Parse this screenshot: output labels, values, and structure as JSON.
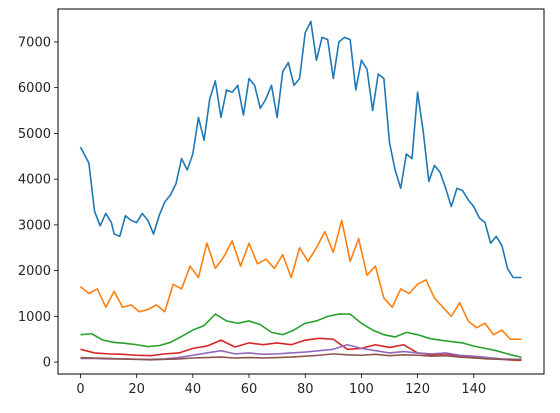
{
  "chart_data": {
    "type": "line",
    "title": "",
    "xlabel": "",
    "ylabel": "",
    "xlim": [
      -8,
      165
    ],
    "ylim": [
      -260,
      7720
    ],
    "grid": false,
    "legend": "none",
    "x_ticks": [
      0,
      20,
      40,
      60,
      80,
      100,
      120,
      140
    ],
    "y_ticks": [
      0,
      1000,
      2000,
      3000,
      4000,
      5000,
      6000,
      7000
    ],
    "series": [
      {
        "color": "#1f77b4",
        "x": [
          0,
          3,
          5,
          7,
          9,
          11,
          12,
          14,
          16,
          18,
          20,
          22,
          24,
          26,
          28,
          30,
          32,
          34,
          36,
          38,
          40,
          42,
          44,
          46,
          48,
          50,
          52,
          54,
          56,
          58,
          60,
          62,
          64,
          66,
          68,
          70,
          72,
          74,
          76,
          78,
          80,
          82,
          84,
          86,
          88,
          90,
          92,
          94,
          96,
          98,
          100,
          102,
          104,
          106,
          108,
          110,
          112,
          114,
          116,
          118,
          120,
          122,
          124,
          126,
          128,
          130,
          132,
          134,
          136,
          138,
          140,
          142,
          144,
          146,
          148,
          150,
          152,
          154,
          156,
          157
        ],
        "y": [
          4700,
          4350,
          3300,
          2980,
          3250,
          3050,
          2800,
          2750,
          3200,
          3100,
          3050,
          3250,
          3100,
          2800,
          3200,
          3500,
          3650,
          3900,
          4450,
          4200,
          4550,
          5350,
          4850,
          5750,
          6150,
          5350,
          5950,
          5900,
          6050,
          5400,
          6200,
          6050,
          5550,
          5750,
          6050,
          5350,
          6350,
          6550,
          6050,
          6200,
          7200,
          7450,
          6600,
          7100,
          7050,
          6200,
          7000,
          7100,
          7050,
          5950,
          6600,
          6400,
          5500,
          6300,
          6200,
          4800,
          4200,
          3800,
          4550,
          4450,
          5900,
          5050,
          3950,
          4300,
          4150,
          3800,
          3400,
          3800,
          3750,
          3550,
          3400,
          3150,
          3050,
          2600,
          2750,
          2550,
          2050,
          1850,
          1850,
          1850
        ]
      },
      {
        "color": "#ff7f0e",
        "x": [
          0,
          3,
          6,
          9,
          12,
          15,
          18,
          21,
          24,
          27,
          30,
          33,
          36,
          39,
          42,
          45,
          48,
          51,
          54,
          57,
          60,
          63,
          66,
          69,
          72,
          75,
          78,
          81,
          84,
          87,
          90,
          93,
          96,
          99,
          102,
          105,
          108,
          111,
          114,
          117,
          120,
          123,
          126,
          129,
          132,
          135,
          138,
          141,
          144,
          147,
          150,
          153,
          156,
          157
        ],
        "y": [
          1650,
          1500,
          1600,
          1200,
          1550,
          1200,
          1250,
          1100,
          1150,
          1250,
          1100,
          1700,
          1600,
          2100,
          1850,
          2600,
          2050,
          2300,
          2650,
          2100,
          2600,
          2150,
          2250,
          2050,
          2350,
          1850,
          2500,
          2200,
          2500,
          2850,
          2400,
          3100,
          2200,
          2700,
          1900,
          2100,
          1400,
          1200,
          1600,
          1500,
          1700,
          1800,
          1400,
          1200,
          1000,
          1300,
          900,
          750,
          850,
          600,
          700,
          500,
          500,
          500
        ]
      },
      {
        "color": "#2ca02c",
        "x": [
          0,
          4,
          8,
          12,
          16,
          20,
          24,
          28,
          32,
          36,
          40,
          44,
          48,
          52,
          56,
          60,
          64,
          68,
          72,
          76,
          80,
          84,
          88,
          92,
          96,
          100,
          104,
          108,
          112,
          116,
          120,
          124,
          128,
          132,
          136,
          140,
          144,
          148,
          152,
          156,
          157
        ],
        "y": [
          600,
          620,
          480,
          430,
          410,
          380,
          340,
          360,
          430,
          560,
          700,
          800,
          1050,
          900,
          850,
          900,
          820,
          650,
          600,
          700,
          850,
          900,
          1000,
          1050,
          1050,
          850,
          700,
          600,
          550,
          650,
          600,
          520,
          480,
          450,
          420,
          350,
          300,
          250,
          180,
          120,
          100
        ]
      },
      {
        "color": "#d62728",
        "x": [
          0,
          5,
          10,
          15,
          20,
          25,
          30,
          35,
          40,
          45,
          50,
          55,
          60,
          65,
          70,
          75,
          80,
          85,
          90,
          95,
          100,
          105,
          110,
          115,
          120,
          125,
          130,
          135,
          140,
          145,
          150,
          155,
          157
        ],
        "y": [
          280,
          200,
          180,
          170,
          150,
          140,
          180,
          200,
          300,
          350,
          480,
          330,
          420,
          380,
          420,
          380,
          480,
          520,
          500,
          280,
          300,
          380,
          320,
          380,
          200,
          160,
          180,
          120,
          100,
          80,
          60,
          40,
          40
        ]
      },
      {
        "color": "#9467bd",
        "x": [
          0,
          5,
          10,
          15,
          20,
          25,
          30,
          35,
          40,
          45,
          50,
          55,
          60,
          65,
          70,
          75,
          80,
          85,
          90,
          95,
          100,
          105,
          110,
          115,
          120,
          125,
          130,
          135,
          140,
          145,
          150,
          155,
          157
        ],
        "y": [
          80,
          80,
          70,
          70,
          60,
          60,
          70,
          100,
          150,
          200,
          250,
          180,
          200,
          170,
          180,
          200,
          220,
          250,
          280,
          380,
          300,
          250,
          200,
          230,
          200,
          180,
          200,
          150,
          130,
          100,
          70,
          60,
          60
        ]
      },
      {
        "color": "#8c564b",
        "x": [
          0,
          5,
          10,
          15,
          20,
          25,
          30,
          35,
          40,
          45,
          50,
          55,
          60,
          65,
          70,
          75,
          80,
          85,
          90,
          95,
          100,
          105,
          110,
          115,
          120,
          125,
          130,
          135,
          140,
          145,
          150,
          155,
          157
        ],
        "y": [
          100,
          90,
          80,
          70,
          60,
          50,
          60,
          70,
          90,
          100,
          110,
          90,
          100,
          90,
          100,
          110,
          130,
          150,
          180,
          160,
          150,
          170,
          140,
          160,
          150,
          130,
          140,
          110,
          90,
          70,
          60,
          50,
          50
        ]
      }
    ]
  }
}
